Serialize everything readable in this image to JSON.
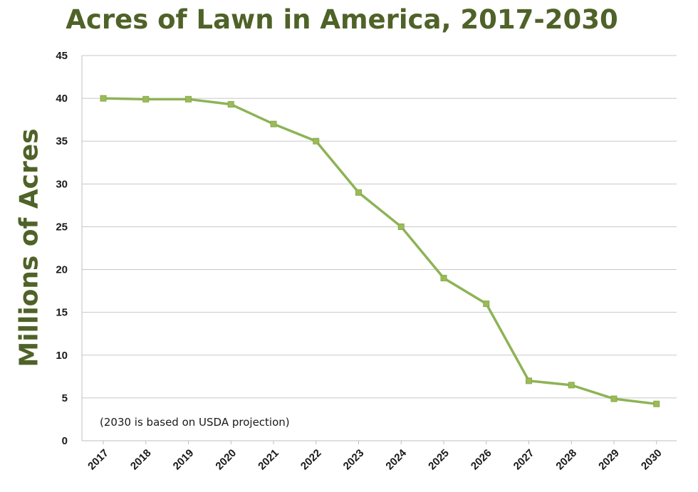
{
  "chart_data": {
    "type": "line",
    "title": "Acres of Lawn in America, 2017-2030",
    "ylabel": "Millions of Acres",
    "xlabel": "",
    "annotation": "(2030 is based on USDA projection)",
    "ylim": [
      0,
      45
    ],
    "yticks": [
      "0",
      "5",
      "10",
      "15",
      "20",
      "25",
      "30",
      "35",
      "40",
      "45"
    ],
    "categories": [
      "2017",
      "2018",
      "2019",
      "2020",
      "2021",
      "2022",
      "2023",
      "2024",
      "2025",
      "2026",
      "2027",
      "2028",
      "2029",
      "2030"
    ],
    "series": [
      {
        "values": [
          40,
          39.9,
          39.9,
          39.3,
          37,
          35,
          29,
          25,
          19,
          16,
          7,
          6.5,
          4.9,
          4.3
        ]
      }
    ],
    "grid": true,
    "legend": "none",
    "colors": {
      "title": "#4f6228",
      "line": "#8db356",
      "marker": "#9bbb59"
    }
  }
}
